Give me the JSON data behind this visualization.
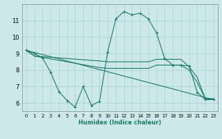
{
  "xlabel": "Humidex (Indice chaleur)",
  "bg_color": "#cce8e8",
  "grid_color": "#aacece",
  "line_color": "#1a7a6e",
  "xlim": [
    -0.5,
    23.5
  ],
  "ylim": [
    5.5,
    12.0
  ],
  "xticks": [
    0,
    1,
    2,
    3,
    4,
    5,
    6,
    7,
    8,
    9,
    10,
    11,
    12,
    13,
    14,
    15,
    16,
    17,
    18,
    19,
    20,
    21,
    22,
    23
  ],
  "yticks": [
    6,
    7,
    8,
    9,
    10,
    11
  ],
  "line1_x": [
    0,
    1,
    2,
    3,
    4,
    5,
    6,
    7,
    8,
    9,
    10,
    11,
    12,
    13,
    14,
    15,
    16,
    17,
    18,
    19,
    20,
    21,
    22,
    23
  ],
  "line1_y": [
    9.2,
    9.0,
    8.75,
    7.85,
    6.7,
    6.15,
    5.75,
    7.0,
    5.85,
    6.1,
    9.1,
    11.1,
    11.55,
    11.35,
    11.45,
    11.1,
    10.25,
    8.7,
    8.3,
    8.3,
    8.25,
    6.65,
    6.2,
    6.2
  ],
  "line2_x": [
    0,
    1,
    9,
    10,
    11,
    12,
    13,
    14,
    15,
    16,
    17,
    18,
    19,
    20,
    21,
    22,
    23
  ],
  "line2_y": [
    9.2,
    8.85,
    8.55,
    8.5,
    8.5,
    8.5,
    8.5,
    8.5,
    8.5,
    8.65,
    8.65,
    8.65,
    8.65,
    8.2,
    7.55,
    6.25,
    6.25
  ],
  "line3_x": [
    0,
    1,
    9,
    10,
    11,
    12,
    13,
    14,
    15,
    16,
    17,
    18,
    19,
    20,
    21,
    22,
    23
  ],
  "line3_y": [
    9.2,
    8.85,
    8.15,
    8.1,
    8.1,
    8.1,
    8.1,
    8.1,
    8.1,
    8.3,
    8.3,
    8.3,
    8.3,
    8.0,
    7.25,
    6.25,
    6.25
  ],
  "line4_x": [
    0,
    23
  ],
  "line4_y": [
    9.2,
    6.2
  ]
}
